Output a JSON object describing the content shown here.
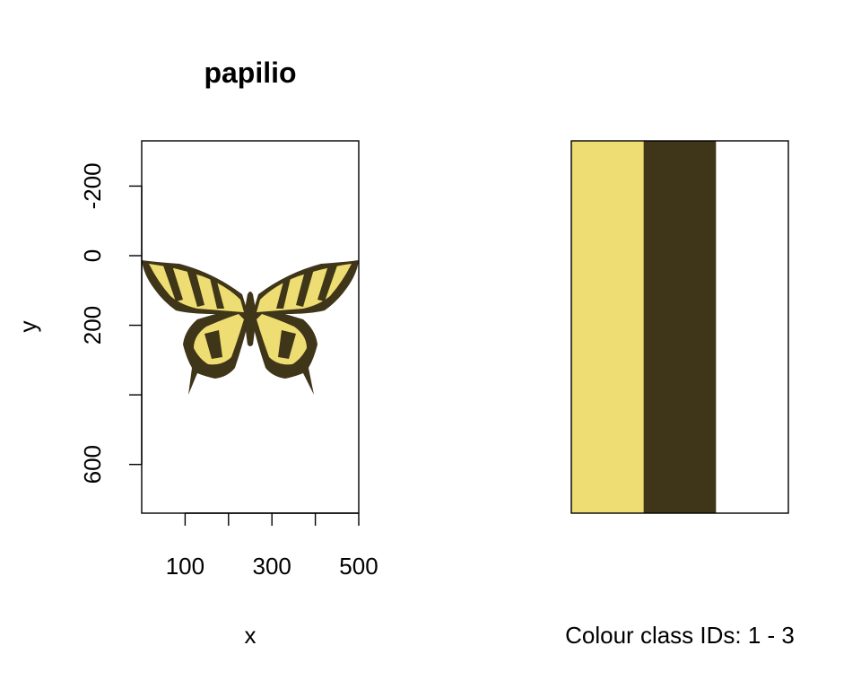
{
  "chart_data": [
    {
      "type": "other",
      "title": "papilio",
      "xlabel": "x",
      "ylabel": "y",
      "xlim": [
        0,
        500
      ],
      "ylim": [
        -330,
        740
      ],
      "y_reversed": true,
      "x_ticks": [
        100,
        200,
        300,
        400,
        500
      ],
      "x_tick_labels": [
        "100",
        "300",
        "500"
      ],
      "x_tick_label_values": [
        100,
        300,
        500
      ],
      "y_ticks": [
        -200,
        0,
        200,
        400,
        600
      ],
      "y_tick_labels": [
        "-200",
        "0",
        "200",
        "600"
      ],
      "y_tick_label_values": [
        -200,
        0,
        200,
        600
      ],
      "image_extent": {
        "x": [
          0,
          500
        ],
        "y": [
          0,
          400
        ]
      },
      "image": "butterfly-icon",
      "colors": {
        "light": "#EDDD72",
        "dark": "#3F3518",
        "background": "#FFFFFF"
      }
    },
    {
      "type": "palette",
      "xlabel": "Colour class IDs: 1 - 3",
      "classes": [
        1,
        2,
        3
      ],
      "colors": [
        "#EDDD72",
        "#3F3518",
        "#FFFFFF"
      ]
    }
  ]
}
